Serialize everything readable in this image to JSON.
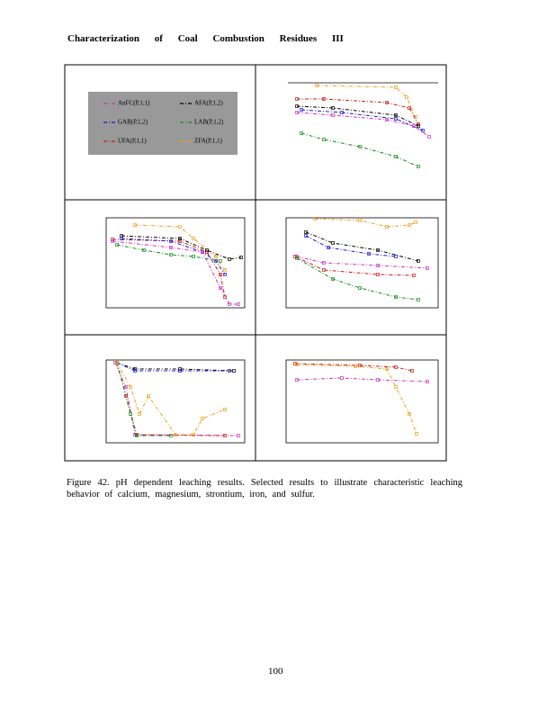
{
  "header": "Characterization of Coal Combustion Residues III",
  "legend": [
    {
      "name": "AnFC(P,1,1)",
      "color": "#cc33cc"
    },
    {
      "name": "AFA(P,1,2)",
      "color": "#000000"
    },
    {
      "name": "GAB(P,1,2)",
      "color": "#1a1acc"
    },
    {
      "name": "LAB(P,1,2)",
      "color": "#1a8c1a"
    },
    {
      "name": "UFA(P,1,1)",
      "color": "#cc1a1a"
    },
    {
      "name": "ZFA(P,1,1)",
      "color": "#f0a020"
    }
  ],
  "caption": "Figure 42. pH dependent leaching results. Selected results to illustrate characteristic leaching behavior of calcium, magnesium, strontium, iron, and sulfur.",
  "page_number": "100"
}
